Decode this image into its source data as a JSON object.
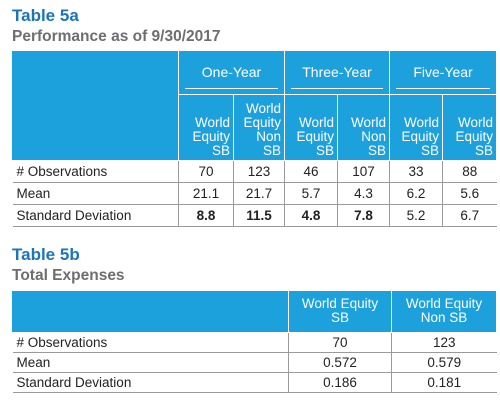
{
  "table5a": {
    "title": "Table 5a",
    "subtitle": "Performance as of 9/30/2017",
    "groups": [
      "One-Year",
      "Three-Year",
      "Five-Year"
    ],
    "columns": [
      [
        "World",
        "Equity",
        "SB"
      ],
      [
        "World",
        "Equity Non",
        "SB"
      ],
      [
        "World",
        "Equity",
        "SB"
      ],
      [
        "World",
        "Non",
        "SB"
      ],
      [
        "World",
        "Equity",
        "SB"
      ],
      [
        "World",
        "Equity",
        "SB"
      ]
    ],
    "rows": [
      {
        "label": "# Observations",
        "values": [
          "70",
          "123",
          "46",
          "107",
          "33",
          "88"
        ]
      },
      {
        "label": "Mean",
        "values": [
          "21.1",
          "21.7",
          "5.7",
          "4.3",
          "6.2",
          "5.6"
        ]
      },
      {
        "label": "Standard Deviation",
        "values": [
          "8.8",
          "11.5",
          "4.8",
          "7.8",
          "5.2",
          "6.7"
        ]
      }
    ]
  },
  "table5b": {
    "title": "Table 5b",
    "subtitle": "Total Expenses",
    "columns": [
      [
        "World Equity",
        "SB"
      ],
      [
        "World Equity",
        "Non SB"
      ]
    ],
    "rows": [
      {
        "label": "# Observations",
        "values": [
          "70",
          "123"
        ]
      },
      {
        "label": "Mean",
        "values": [
          "0.572",
          "0.579"
        ]
      },
      {
        "label": "Standard Deviation",
        "values": [
          "0.186",
          "0.181"
        ]
      }
    ]
  }
}
